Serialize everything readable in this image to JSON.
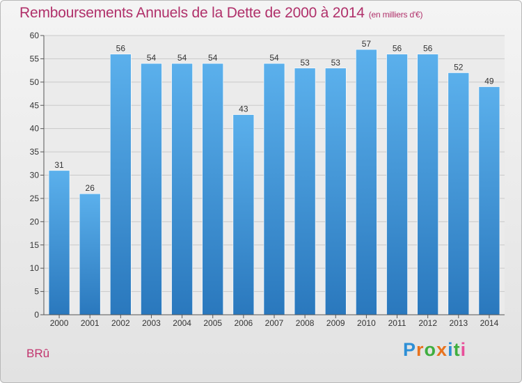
{
  "header": {
    "title": "Remboursements Annuels de la Dette de 2000 à 2014",
    "unit": "(en milliers d'€)"
  },
  "commune": "BRû",
  "logo": {
    "text": "Proxiti",
    "colors": [
      "#2d8fd6",
      "#e8731e",
      "#3fae3f",
      "#e8731e",
      "#2d8fd6",
      "#3fae3f",
      "#e84f9a"
    ]
  },
  "chart_data": {
    "type": "bar",
    "title": "Remboursements Annuels de la Dette de 2000 à 2014",
    "categories": [
      "2000",
      "2001",
      "2002",
      "2003",
      "2004",
      "2005",
      "2006",
      "2007",
      "2008",
      "2009",
      "2010",
      "2011",
      "2012",
      "2013",
      "2014"
    ],
    "values": [
      31,
      26,
      56,
      54,
      54,
      54,
      43,
      54,
      53,
      53,
      57,
      56,
      56,
      52,
      49
    ],
    "ylim": [
      0,
      60
    ],
    "yticks": [
      "0",
      "5",
      "10",
      "15",
      "20",
      "25",
      "30",
      "35",
      "40",
      "45",
      "50",
      "55",
      "60"
    ],
    "grid": true,
    "bar_color": "#4d9fdf"
  }
}
